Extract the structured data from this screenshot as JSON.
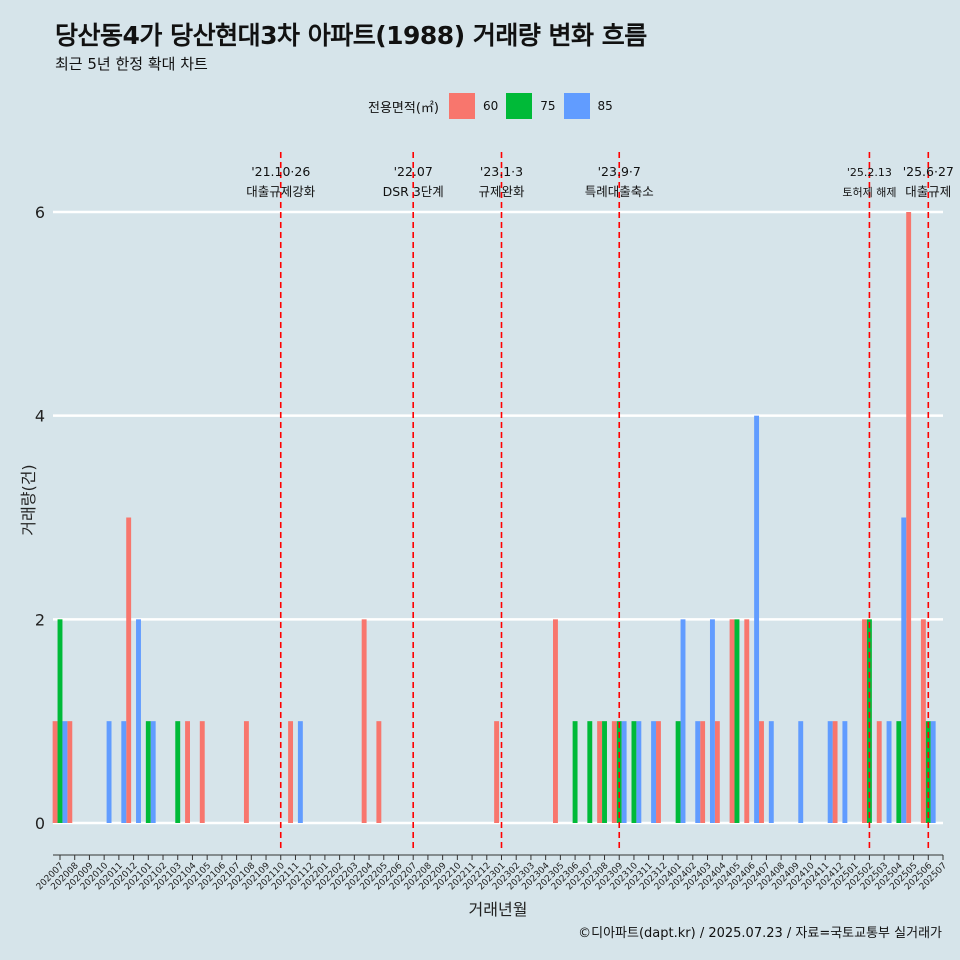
{
  "header": {
    "title": "당산동4가 당산현대3차 아파트(1988) 거래량 변화 흐름",
    "subtitle": "최근 5년 한정 확대 차트"
  },
  "legend": {
    "title": "전용면적(㎡)",
    "items": [
      {
        "label": "60",
        "color": "#f8766d"
      },
      {
        "label": "75",
        "color": "#00ba38"
      },
      {
        "label": "85",
        "color": "#619cff"
      }
    ]
  },
  "caption": "©디아파트(dapt.kr) / 2025.07.23 / 자료=국토교통부 실거래가",
  "chart_data": {
    "type": "bar",
    "xlabel": "거래년월",
    "ylabel": "거래량(건)",
    "ylim": [
      0,
      6
    ],
    "yticks": [
      0,
      2,
      4,
      6
    ],
    "grid": true,
    "legend_position": "top",
    "categories": [
      "202007",
      "202008",
      "202009",
      "202010",
      "202011",
      "202012",
      "202101",
      "202102",
      "202103",
      "202104",
      "202105",
      "202106",
      "202107",
      "202108",
      "202109",
      "202110",
      "202111",
      "202112",
      "202201",
      "202202",
      "202203",
      "202204",
      "202205",
      "202206",
      "202207",
      "202208",
      "202209",
      "202210",
      "202211",
      "202212",
      "202301",
      "202302",
      "202303",
      "202304",
      "202305",
      "202306",
      "202307",
      "202308",
      "202309",
      "202310",
      "202311",
      "202312",
      "202401",
      "202402",
      "202403",
      "202404",
      "202405",
      "202406",
      "202407",
      "202408",
      "202409",
      "202410",
      "202411",
      "202412",
      "202501",
      "202502",
      "202503",
      "202504",
      "202505",
      "202506",
      "202507"
    ],
    "series": [
      {
        "name": "60",
        "color": "#f8766d",
        "values": [
          1,
          1,
          0,
          0,
          0,
          3,
          0,
          0,
          0,
          1,
          1,
          0,
          0,
          1,
          0,
          0,
          1,
          0,
          0,
          0,
          0,
          2,
          1,
          0,
          0,
          0,
          0,
          0,
          0,
          0,
          1,
          0,
          0,
          0,
          2,
          0,
          0,
          1,
          1,
          0,
          0,
          1,
          0,
          0,
          1,
          1,
          2,
          2,
          1,
          0,
          0,
          0,
          0,
          1,
          0,
          2,
          1,
          0,
          6,
          2,
          0
        ]
      },
      {
        "name": "75",
        "color": "#00ba38",
        "values": [
          2,
          0,
          0,
          0,
          0,
          0,
          1,
          0,
          1,
          0,
          0,
          0,
          0,
          0,
          0,
          0,
          0,
          0,
          0,
          0,
          0,
          0,
          0,
          0,
          0,
          0,
          0,
          0,
          0,
          0,
          0,
          0,
          0,
          0,
          0,
          1,
          1,
          1,
          1,
          1,
          0,
          0,
          1,
          0,
          0,
          0,
          2,
          0,
          0,
          0,
          0,
          0,
          0,
          0,
          0,
          2,
          0,
          1,
          0,
          1,
          0
        ]
      },
      {
        "name": "85",
        "color": "#619cff",
        "values": [
          1,
          0,
          0,
          1,
          1,
          2,
          1,
          0,
          0,
          0,
          0,
          0,
          0,
          0,
          0,
          0,
          1,
          0,
          0,
          0,
          0,
          0,
          0,
          0,
          0,
          0,
          0,
          0,
          0,
          0,
          0,
          0,
          0,
          0,
          0,
          0,
          0,
          0,
          1,
          1,
          1,
          0,
          2,
          1,
          2,
          0,
          0,
          4,
          1,
          0,
          1,
          0,
          1,
          1,
          0,
          0,
          1,
          3,
          0,
          1,
          0
        ]
      }
    ],
    "events": [
      {
        "date": "202110",
        "line1": "'21.10·26",
        "line2": "대출규제강화"
      },
      {
        "date": "202207",
        "line1": "'22.07",
        "line2": "DSR 3단계"
      },
      {
        "date": "202301",
        "line1": "'23.1·3",
        "line2": "규제완화"
      },
      {
        "date": "202309",
        "line1": "'23.9·7",
        "line2": "특례대출축소"
      },
      {
        "date": "202502",
        "line1": "'25.2.13",
        "line2": "토허제 해제"
      },
      {
        "date": "202506",
        "line1": "'25.6·27",
        "line2": "대출규제"
      }
    ]
  }
}
